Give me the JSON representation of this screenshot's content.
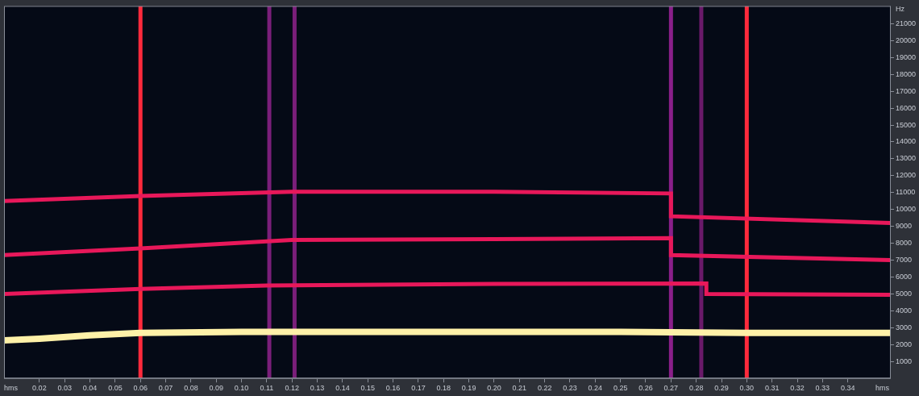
{
  "chart_data": {
    "type": "line",
    "xlabel": "hms",
    "ylabel": "Hz",
    "xlim": [
      0.006,
      0.357
    ],
    "xticks": [
      0.02,
      0.03,
      0.04,
      0.05,
      0.06,
      0.07,
      0.08,
      0.09,
      {
        "value": 0.1,
        "label": "0.10"
      },
      0.11,
      0.12,
      0.13,
      0.14,
      0.15,
      0.16,
      0.17,
      0.18,
      0.19,
      {
        "value": 0.2,
        "label": "0.20"
      },
      0.21,
      0.22,
      0.23,
      0.24,
      0.25,
      0.26,
      0.27,
      0.28,
      0.29,
      {
        "value": 0.3,
        "label": "0.30"
      },
      0.31,
      0.32,
      0.33,
      0.34
    ],
    "ylim": [
      0,
      22050
    ],
    "yticks": [
      1000,
      2000,
      3000,
      4000,
      5000,
      6000,
      7000,
      8000,
      9000,
      10000,
      11000,
      12000,
      13000,
      14000,
      15000,
      16000,
      17000,
      18000,
      19000,
      20000,
      21000
    ],
    "grid": false,
    "series": [
      {
        "color": "#fff1a8",
        "x": [
          0.006,
          0.02,
          0.04,
          0.06,
          0.1,
          0.15,
          0.2,
          0.25,
          0.3,
          0.357
        ],
        "values": [
          2250,
          2350,
          2550,
          2700,
          2750,
          2750,
          2750,
          2750,
          2700,
          2700
        ]
      },
      {
        "color": "#e8185a",
        "x": [
          0.006,
          0.06,
          0.11,
          0.2,
          0.284,
          0.284,
          0.357
        ],
        "values": [
          5000,
          5300,
          5500,
          5600,
          5620,
          5000,
          4950
        ]
      },
      {
        "color": "#e8185a",
        "x": [
          0.006,
          0.06,
          0.12,
          0.2,
          0.27,
          0.27,
          0.357
        ],
        "values": [
          7300,
          7700,
          8200,
          8250,
          8300,
          7300,
          7000
        ]
      },
      {
        "color": "#e8185a",
        "x": [
          0.006,
          0.06,
          0.12,
          0.2,
          0.27,
          0.27,
          0.357
        ],
        "values": [
          10500,
          10800,
          11050,
          11050,
          10950,
          9600,
          9200
        ]
      }
    ],
    "transients": {
      "x": [
        0.06,
        0.111,
        0.121,
        0.27,
        0.282,
        0.3
      ],
      "colors": [
        "#ff2a3c",
        "#7a1f7a",
        "#7a1f7a",
        "#8a1f8a",
        "#6a1a6a",
        "#ff2a3c"
      ]
    }
  }
}
